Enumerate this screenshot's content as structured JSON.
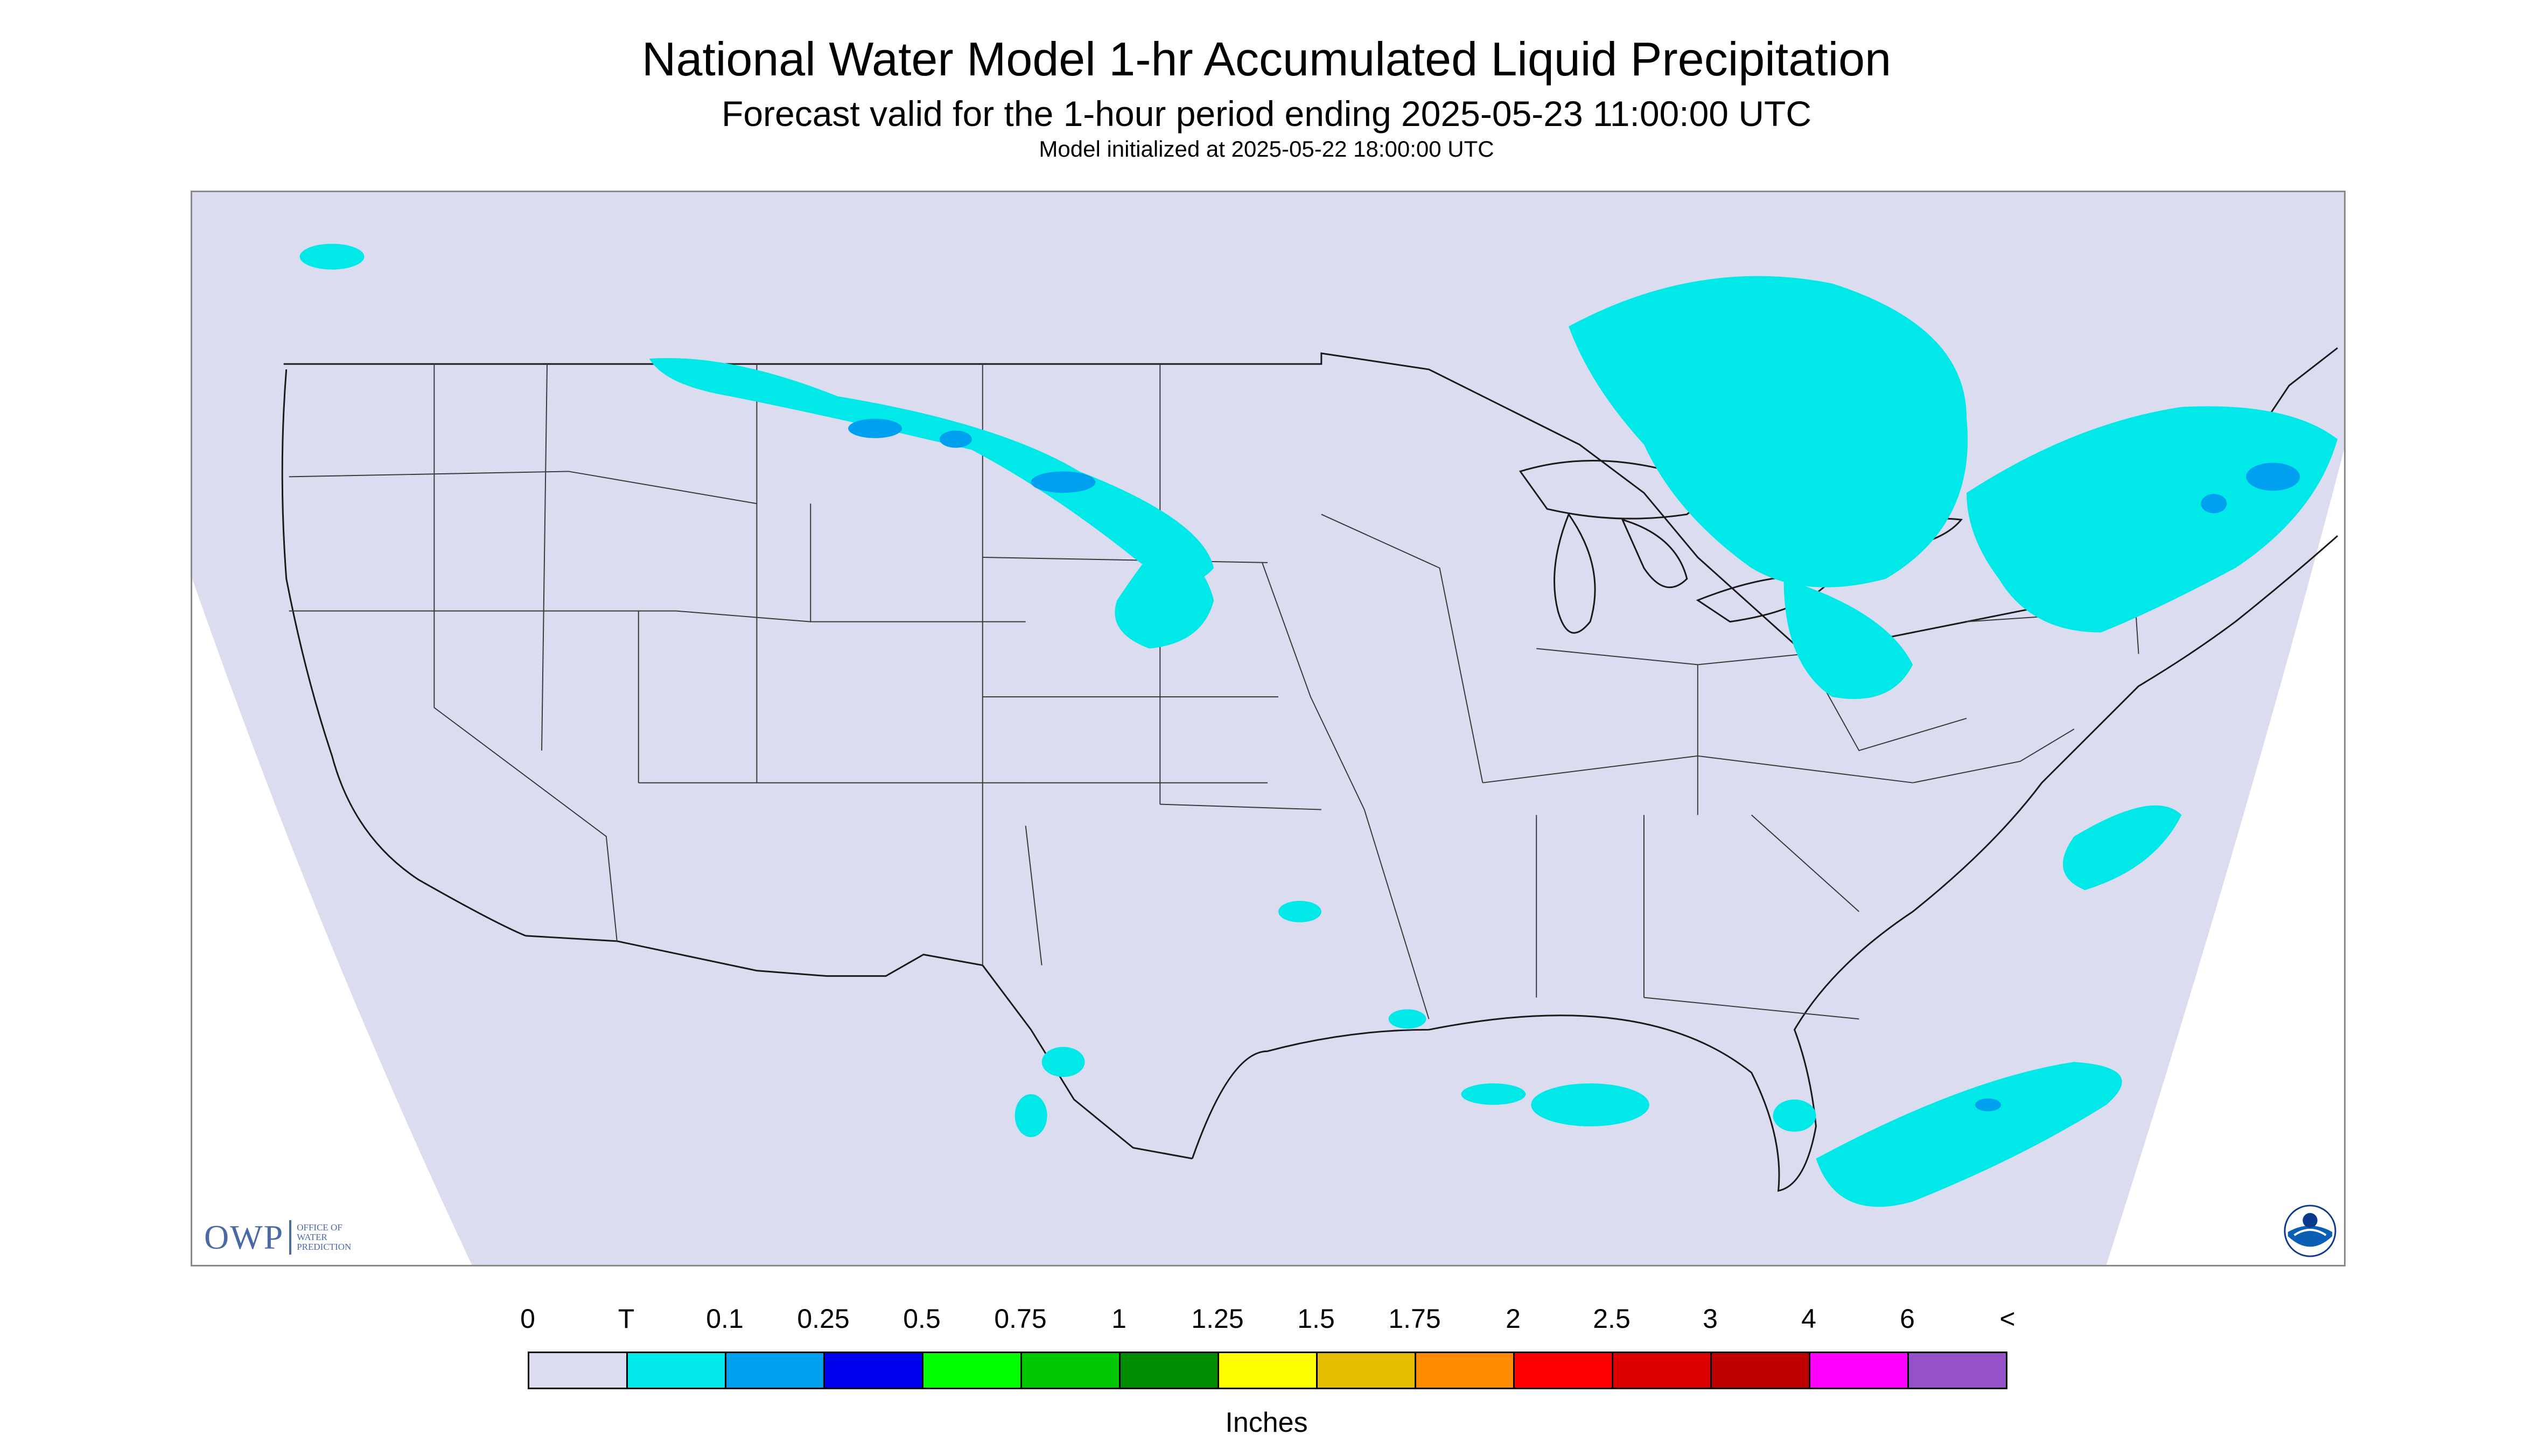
{
  "title": "National Water Model 1-hr Accumulated Liquid Precipitation",
  "subtitle": "Forecast valid for the 1-hour period ending 2025-05-23 11:00:00 UTC",
  "init_line": "Model initialized at 2025-05-22 18:00:00 UTC",
  "logos": {
    "owp_text": "OWP",
    "owp_sub": [
      "OFFICE OF",
      "WATER",
      "PREDICTION"
    ],
    "noaa_icon": "noaa-seal-icon"
  },
  "legend": {
    "labels": [
      "0",
      "T",
      "0.1",
      "0.25",
      "0.5",
      "0.75",
      "1",
      "1.25",
      "1.5",
      "1.75",
      "2",
      "2.5",
      "3",
      "4",
      "6",
      "<"
    ],
    "colors": [
      "#dcdcf0",
      "#00e8e8",
      "#00a0f0",
      "#0000f0",
      "#00ff00",
      "#00c800",
      "#008c00",
      "#ffff00",
      "#e6be00",
      "#ff8c00",
      "#ff0000",
      "#dc0000",
      "#be0000",
      "#ff00ff",
      "#9650c8"
    ],
    "units": "Inches"
  },
  "colors": {
    "domain_fill": "#dcdcf0",
    "trace": "#00e8e8",
    "light": "#00a0f0",
    "borders": "#1a1a1a"
  }
}
